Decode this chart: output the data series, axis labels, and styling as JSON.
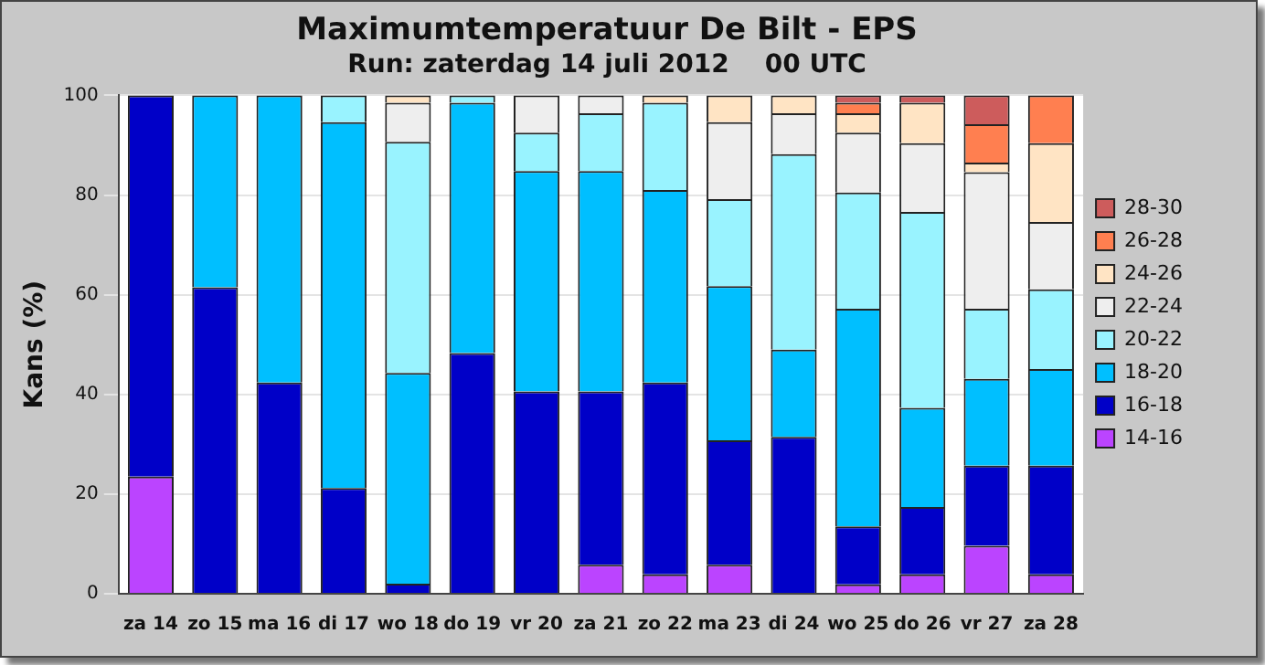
{
  "chart_data": {
    "type": "bar",
    "title": "Maximumtemperatuur De Bilt - EPS",
    "subtitle": "Run: zaterdag 14 juli 2012    00 UTC",
    "ylabel": "Kans (%)",
    "stacked": true,
    "grid": "y",
    "legend": "right",
    "ylim": [
      0,
      100
    ],
    "yticks": [
      0,
      20,
      40,
      60,
      80,
      100
    ],
    "categories": [
      "za 14",
      "zo 15",
      "ma 16",
      "di 17",
      "wo 18",
      "do 19",
      "vr 20",
      "za 21",
      "zo 22",
      "ma 23",
      "di 24",
      "wo 25",
      "do 26",
      "vr 27",
      "za 28"
    ],
    "series": [
      {
        "name": "14-16",
        "color": "#bb44ff",
        "values": [
          23.5,
          0,
          0,
          0,
          0,
          0,
          0,
          5.8,
          3.9,
          5.8,
          0,
          1.9,
          3.9,
          9.6,
          3.9
        ]
      },
      {
        "name": "16-18",
        "color": "#0000c8",
        "values": [
          76.5,
          61.5,
          42.4,
          21.2,
          2,
          48.3,
          40.6,
          34.8,
          38.5,
          25,
          31.5,
          11.6,
          13.5,
          16.1,
          21.8
        ]
      },
      {
        "name": "18-20",
        "color": "#00bfff",
        "values": [
          0,
          38.5,
          57.6,
          73.4,
          42.3,
          50.2,
          44.2,
          44.2,
          38.6,
          30.9,
          17.5,
          43.7,
          19.9,
          17.4,
          19.4
        ]
      },
      {
        "name": "20-22",
        "color": "#99f3ff",
        "values": [
          0,
          0,
          0,
          5.4,
          46.4,
          1.5,
          7.7,
          11.6,
          17.5,
          17.5,
          39.2,
          23.3,
          39.3,
          14.1,
          16
        ]
      },
      {
        "name": "22-24",
        "color": "#eeeeee",
        "values": [
          0,
          0,
          0,
          0,
          7.8,
          0,
          7.5,
          3.6,
          0,
          15.4,
          8.2,
          12,
          13.8,
          27.4,
          13.5
        ]
      },
      {
        "name": "24-26",
        "color": "#ffe4c4",
        "values": [
          0,
          0,
          0,
          0,
          1.5,
          0,
          0,
          0,
          1.5,
          5.4,
          3.6,
          3.9,
          8.1,
          1.9,
          15.8
        ]
      },
      {
        "name": "26-28",
        "color": "#ff7f50",
        "values": [
          0,
          0,
          0,
          0,
          0,
          0,
          0,
          0,
          0,
          0,
          0,
          2.1,
          0,
          7.7,
          9.6
        ]
      },
      {
        "name": "28-30",
        "color": "#cd5c5c",
        "values": [
          0,
          0,
          0,
          0,
          0,
          0,
          0,
          0,
          0,
          0,
          0,
          1.5,
          1.5,
          5.8,
          0
        ]
      }
    ]
  }
}
